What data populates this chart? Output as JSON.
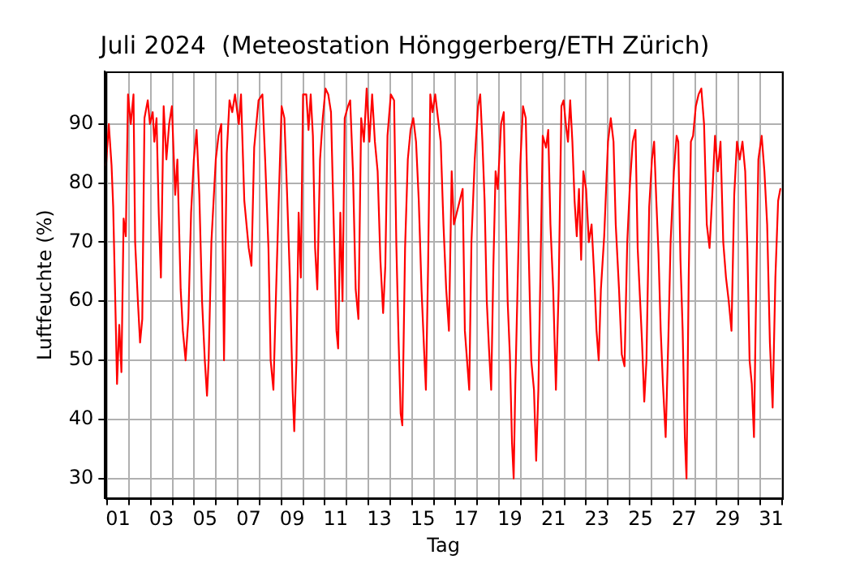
{
  "chart_data": {
    "type": "line",
    "title": "Juli 2024  (Meteostation Hönggerberg/ETH Zürich)",
    "xlabel": "Tag",
    "ylabel": "Luftfeuchte (%)",
    "series": [
      {
        "color": "#ff0000",
        "x": [
          0.952,
          1.078,
          1.204,
          1.279,
          1.405,
          1.456,
          1.557,
          1.657,
          1.758,
          1.859,
          1.96,
          2.086,
          2.212,
          2.287,
          2.413,
          2.514,
          2.615,
          2.716,
          2.867,
          2.968,
          3.094,
          3.169,
          3.27,
          3.371,
          3.471,
          3.597,
          3.723,
          3.849,
          3.975,
          4.126,
          4.227,
          4.378,
          4.479,
          4.605,
          4.731,
          4.857,
          4.983,
          5.109,
          5.235,
          5.361,
          5.487,
          5.588,
          5.663,
          5.789,
          5.991,
          6.117,
          6.243,
          6.369,
          6.495,
          6.621,
          6.747,
          6.873,
          7.049,
          7.15,
          7.301,
          7.503,
          7.629,
          7.755,
          7.956,
          8.132,
          8.258,
          8.41,
          8.511,
          8.637,
          8.763,
          8.889,
          9.015,
          9.141,
          9.267,
          9.393,
          9.519,
          9.594,
          9.695,
          9.796,
          9.897,
          9.998,
          10.149,
          10.25,
          10.35,
          10.451,
          10.552,
          10.653,
          10.779,
          10.905,
          11.031,
          11.157,
          11.282,
          11.408,
          11.534,
          11.61,
          11.711,
          11.812,
          11.912,
          12.063,
          12.164,
          12.29,
          12.416,
          12.542,
          12.668,
          12.794,
          12.92,
          13.046,
          13.172,
          13.298,
          13.424,
          13.55,
          13.676,
          13.777,
          13.877,
          14.029,
          14.18,
          14.281,
          14.382,
          14.482,
          14.558,
          14.684,
          14.81,
          14.936,
          15.062,
          15.188,
          15.314,
          15.44,
          15.566,
          15.641,
          15.742,
          15.843,
          15.944,
          16.069,
          16.195,
          16.321,
          16.447,
          16.573,
          16.699,
          16.825,
          16.926,
          17.329,
          17.43,
          17.53,
          17.631,
          17.732,
          17.883,
          18.034,
          18.135,
          18.236,
          18.337,
          18.437,
          18.538,
          18.639,
          18.74,
          18.841,
          18.941,
          19.093,
          19.218,
          19.294,
          19.395,
          19.496,
          19.596,
          19.672,
          19.748,
          19.848,
          19.974,
          20.1,
          20.226,
          20.352,
          20.478,
          20.604,
          20.705,
          20.806,
          20.906,
          21.007,
          21.158,
          21.259,
          21.36,
          21.486,
          21.612,
          21.738,
          21.864,
          21.965,
          22.066,
          22.166,
          22.267,
          22.368,
          22.469,
          22.57,
          22.671,
          22.771,
          22.872,
          22.998,
          23.124,
          23.25,
          23.376,
          23.477,
          23.577,
          23.678,
          23.829,
          24.005,
          24.131,
          24.257,
          24.359,
          24.51,
          24.636,
          24.762,
          24.888,
          25.014,
          25.14,
          25.266,
          25.367,
          25.467,
          25.568,
          25.669,
          25.77,
          25.896,
          26.022,
          26.122,
          26.223,
          26.324,
          26.425,
          26.526,
          26.652,
          26.778,
          26.878,
          27.03,
          27.155,
          27.231,
          27.332,
          27.433,
          27.533,
          27.609,
          27.71,
          27.81,
          27.911,
          28.037,
          28.163,
          28.289,
          28.415,
          28.541,
          28.667,
          28.793,
          28.919,
          29.045,
          29.171,
          29.297,
          29.423,
          29.549,
          29.675,
          29.801,
          29.927,
          30.053,
          30.179,
          30.305,
          30.405,
          30.506,
          30.607,
          30.708,
          30.809,
          30.91,
          31.061,
          31.187,
          31.313,
          31.439,
          31.565,
          31.691,
          31.817,
          31.918
        ],
        "values": [
          83,
          90,
          83,
          76,
          55,
          46,
          56,
          48,
          74,
          71,
          95,
          90,
          95,
          70,
          60,
          53,
          57,
          91,
          94,
          90,
          92,
          87,
          91,
          75,
          64,
          93,
          84,
          90,
          93,
          78,
          84,
          62,
          55,
          50,
          57,
          75,
          84,
          89,
          78,
          60,
          50,
          44,
          50,
          70,
          84,
          88,
          90,
          50,
          85,
          94,
          92,
          95,
          90,
          95,
          77,
          69,
          66,
          86,
          94,
          95,
          84,
          69,
          50,
          45,
          62,
          78,
          93,
          91,
          78,
          64,
          45,
          38,
          50,
          75,
          64,
          95,
          95,
          89,
          95,
          88,
          69,
          62,
          84,
          91,
          96,
          95,
          92,
          73,
          55,
          52,
          75,
          60,
          91,
          93,
          94,
          82,
          62,
          57,
          91,
          87,
          96,
          87,
          95,
          87,
          82,
          67,
          58,
          66,
          88,
          95,
          94,
          70,
          54,
          41,
          39,
          69,
          84,
          89,
          91,
          87,
          77,
          62,
          51,
          45,
          66,
          95,
          92,
          95,
          91,
          87,
          73,
          62,
          55,
          82,
          73,
          79,
          55,
          50,
          45,
          70,
          84,
          93,
          95,
          87,
          77,
          60,
          52,
          45,
          66,
          82,
          79,
          90,
          92,
          77,
          60,
          51,
          36,
          30,
          46,
          62,
          83,
          93,
          91,
          70,
          50,
          45,
          33,
          45,
          66,
          88,
          86,
          89,
          73,
          62,
          45,
          62,
          93,
          94,
          90,
          87,
          94,
          87,
          77,
          71,
          79,
          67,
          82,
          79,
          70,
          73,
          64,
          55,
          50,
          62,
          71,
          87,
          91,
          87,
          73,
          62,
          51,
          49,
          70,
          80,
          87,
          89,
          69,
          61,
          53,
          43,
          50,
          76,
          84,
          87,
          77,
          68,
          55,
          46,
          37,
          54,
          70,
          82,
          88,
          87,
          67,
          55,
          37,
          30,
          64,
          87,
          88,
          93,
          95,
          96,
          90,
          73,
          69,
          78,
          88,
          82,
          87,
          70,
          64,
          60,
          55,
          78,
          87,
          84,
          87,
          82,
          69,
          50,
          46,
          37,
          62,
          84,
          88,
          82,
          73,
          53,
          42,
          64,
          77,
          79
        ]
      }
    ],
    "xlim": [
      0.9,
      32
    ],
    "ylim": [
      26.6,
      98.9
    ],
    "xticks": [
      {
        "value": 1,
        "label": null
      },
      {
        "value": 1.5,
        "label": "01"
      },
      {
        "value": 2,
        "label": null
      },
      {
        "value": 3,
        "label": null
      },
      {
        "value": 3.5,
        "label": "03"
      },
      {
        "value": 4,
        "label": null
      },
      {
        "value": 5,
        "label": null
      },
      {
        "value": 5.5,
        "label": "05"
      },
      {
        "value": 6,
        "label": null
      },
      {
        "value": 7,
        "label": null
      },
      {
        "value": 7.5,
        "label": "07"
      },
      {
        "value": 8,
        "label": null
      },
      {
        "value": 9,
        "label": null
      },
      {
        "value": 9.5,
        "label": "09"
      },
      {
        "value": 10,
        "label": null
      },
      {
        "value": 11,
        "label": null
      },
      {
        "value": 11.5,
        "label": "11"
      },
      {
        "value": 12,
        "label": null
      },
      {
        "value": 13,
        "label": null
      },
      {
        "value": 13.5,
        "label": "13"
      },
      {
        "value": 14,
        "label": null
      },
      {
        "value": 15,
        "label": null
      },
      {
        "value": 15.5,
        "label": "15"
      },
      {
        "value": 16,
        "label": null
      },
      {
        "value": 17,
        "label": null
      },
      {
        "value": 17.5,
        "label": "17"
      },
      {
        "value": 18,
        "label": null
      },
      {
        "value": 19,
        "label": null
      },
      {
        "value": 19.5,
        "label": "19"
      },
      {
        "value": 20,
        "label": null
      },
      {
        "value": 21,
        "label": null
      },
      {
        "value": 21.5,
        "label": "21"
      },
      {
        "value": 22,
        "label": null
      },
      {
        "value": 23,
        "label": null
      },
      {
        "value": 23.5,
        "label": "23"
      },
      {
        "value": 24,
        "label": null
      },
      {
        "value": 25,
        "label": null
      },
      {
        "value": 25.5,
        "label": "25"
      },
      {
        "value": 26,
        "label": null
      },
      {
        "value": 27,
        "label": null
      },
      {
        "value": 27.5,
        "label": "27"
      },
      {
        "value": 28,
        "label": null
      },
      {
        "value": 29,
        "label": null
      },
      {
        "value": 29.5,
        "label": "29"
      },
      {
        "value": 30,
        "label": null
      },
      {
        "value": 31,
        "label": null
      },
      {
        "value": 31.5,
        "label": "31"
      },
      {
        "value": 32,
        "label": null
      }
    ],
    "yticks": [
      30,
      40,
      50,
      60,
      70,
      80,
      90
    ],
    "grid": true,
    "legend": false,
    "marker": "none",
    "line_style": "solid"
  }
}
